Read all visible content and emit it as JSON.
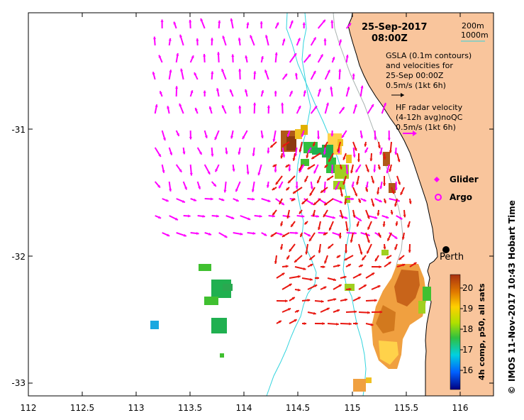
{
  "map": {
    "date": "25-Sep-2017",
    "time": "08:00Z",
    "depth_labels": [
      "200m",
      "1000m"
    ],
    "gsla_lines": [
      "GSLA (0.1m contours)",
      "and velocities for",
      "25-Sep 00:00Z",
      "0.5m/s (1kt 6h)"
    ],
    "hf_lines": [
      "HF radar velocity",
      "(4-12h avg)noQC",
      "0.5m/s (1kt 6h)"
    ],
    "glider_label": "Glider",
    "argo_label": "Argo",
    "city_label": "Perth",
    "credit": "IMOS 11-Nov-2017 10:43 Hobart Time",
    "copyright_symbol": "©",
    "colorbar_title": "4h comp, p50, all sats",
    "colorbar_ticks": [
      "16",
      "17",
      "18",
      "19",
      "20"
    ],
    "x_ticks": [
      "112",
      "112.5",
      "113",
      "113.5",
      "114",
      "114.5",
      "115",
      "115.5",
      "116"
    ],
    "y_ticks": [
      "-31",
      "-32",
      "-33"
    ],
    "colors": {
      "land": "#f9c59c",
      "gsla_arrows": "#ff00ff",
      "hf_arrows": "#e8160f",
      "isobath_200m": "#a9b2b0",
      "isobath_1000m": "#33d4de"
    },
    "icons": [
      "glider-marker-icon",
      "argo-marker-icon",
      "perth-city-icon"
    ]
  }
}
